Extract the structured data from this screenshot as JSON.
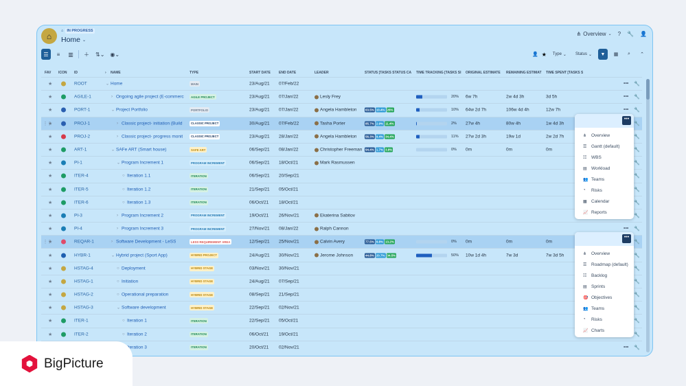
{
  "header": {
    "breadcrumb_status": "IN PROGRESS",
    "title": "Home",
    "view": "Overview"
  },
  "toolbar": {
    "type": "Type",
    "status": "Status"
  },
  "columns": {
    "fav": "FAV",
    "icon": "ICON",
    "id": "ID",
    "name": "NAME",
    "type": "TYPE",
    "start": "START DATE",
    "end": "END DATE",
    "leader": "LEADER",
    "status": "STATUS [TASKS STATUS CA",
    "tt": "TIME TRACKING [TASKS SI",
    "oe": "ORIGINAL ESTIMATE",
    "re": "REMAINING ESTIMAT",
    "ts": "TIME SPENT [TASKS S"
  },
  "rows": [
    {
      "id": "ROOT",
      "name": "Home",
      "type": "MAIN",
      "start": "23/Aug/21",
      "end": "07/Feb/22",
      "leader": "",
      "s": [],
      "tt": null,
      "pct": "",
      "oe": "",
      "re": "",
      "ts": ""
    },
    {
      "id": "AGILE-1",
      "name": "Ongoing agile project (E-commerc",
      "type": "AGILE PROJECT",
      "start": "23/Aug/21",
      "end": "07/Jan/22",
      "leader": "Lesly Frey",
      "s": [],
      "tt": 0.2,
      "pct": "20%",
      "oe": "6w 7h",
      "re": "2w 4d 3h",
      "ts": "3d 5h"
    },
    {
      "id": "PORT-1",
      "name": "Project Portfolio",
      "type": "PORTFOLIO",
      "start": "23/Aug/21",
      "end": "07/Jan/22",
      "leader": "Angela Hambleton",
      "s": [
        "63.5%",
        "10.4%",
        "26%"
      ],
      "tt": 0.1,
      "pct": "10%",
      "oe": "64w 2d 7h",
      "re": "106w 4d 4h",
      "ts": "12w 7h"
    },
    {
      "id": "PROJ-1",
      "name": "Classic project- initiation (Build",
      "type": "CLASSIC PROJECT",
      "start": "30/Aug/21",
      "end": "07/Feb/22",
      "leader": "Tasha Porter",
      "s": [
        "85.7%",
        "2.9%",
        "11.4%"
      ],
      "tt": 0.02,
      "pct": "2%",
      "oe": "27w 4h",
      "re": "80w 4h",
      "ts": "1w 4d 3h"
    },
    {
      "id": "PROJ-2",
      "name": "Classic project- progress monit",
      "type": "CLASSIC PROJECT",
      "start": "23/Aug/21",
      "end": "28/Jan/22",
      "leader": "Angela Hambleton",
      "s": [
        "56.3%",
        "9.4%",
        "34.4%"
      ],
      "tt": 0.11,
      "pct": "11%",
      "oe": "27w 2d 3h",
      "re": "19w 1d",
      "ts": "2w 2d 7h"
    },
    {
      "id": "ART-1",
      "name": "SAFe ART (Smart house)",
      "type": "SAFE ART",
      "start": "06/Sep/21",
      "end": "08/Jan/22",
      "leader": "Christopher Freeman",
      "s": [
        "94.4%",
        "1.7%",
        "3.9%"
      ],
      "tt": 0,
      "pct": "0%",
      "oe": "0m",
      "re": "0m",
      "ts": "0m"
    },
    {
      "id": "PI-1",
      "name": "Program Increment 1",
      "type": "PROGRAM INCREMENT",
      "start": "06/Sep/21",
      "end": "18/Oct/21",
      "leader": "Mark Rasmussen",
      "s": [],
      "tt": null,
      "pct": "",
      "oe": "",
      "re": "",
      "ts": ""
    },
    {
      "id": "ITER-4",
      "name": "Iteration 1.1",
      "type": "ITERATION",
      "start": "06/Sep/21",
      "end": "20/Sep/21",
      "leader": "",
      "s": [],
      "tt": null,
      "pct": "",
      "oe": "",
      "re": "",
      "ts": ""
    },
    {
      "id": "ITER-5",
      "name": "Iteration 1.2",
      "type": "ITERATION",
      "start": "21/Sep/21",
      "end": "05/Oct/21",
      "leader": "",
      "s": [],
      "tt": null,
      "pct": "",
      "oe": "",
      "re": "",
      "ts": ""
    },
    {
      "id": "ITER-6",
      "name": "Iteration 1.3",
      "type": "ITERATION",
      "start": "06/Oct/21",
      "end": "18/Oct/21",
      "leader": "",
      "s": [],
      "tt": null,
      "pct": "",
      "oe": "",
      "re": "",
      "ts": ""
    },
    {
      "id": "PI-3",
      "name": "Program Increment 2",
      "type": "PROGRAM INCREMENT",
      "start": "19/Oct/21",
      "end": "26/Nov/21",
      "leader": "Ekaterina Sabitov",
      "s": [],
      "tt": null,
      "pct": "",
      "oe": "",
      "re": "",
      "ts": ""
    },
    {
      "id": "PI-4",
      "name": "Program Increment 3",
      "type": "PROGRAM INCREMENT",
      "start": "27/Nov/21",
      "end": "08/Jan/22",
      "leader": "Ralph Cannon",
      "s": [],
      "tt": null,
      "pct": "",
      "oe": "",
      "re": "",
      "ts": ""
    },
    {
      "id": "REQAR-1",
      "name": "Software Development - LeSS",
      "type": "LESS REQUIREMENT AREA",
      "start": "12/Sep/21",
      "end": "25/Nov/21",
      "leader": "Calvin Avery",
      "s": [
        "77.5%",
        "8.8%",
        "13.2%"
      ],
      "tt": 0,
      "pct": "0%",
      "oe": "0m",
      "re": "0m",
      "ts": "0m"
    },
    {
      "id": "HYBR-1",
      "name": "Hybrid project (Sport App)",
      "type": "HYBRID PROJECT",
      "start": "24/Aug/21",
      "end": "30/Nov/21",
      "leader": "Jerome Johnson",
      "s": [
        "44.8%",
        "20.7%",
        "34.5%"
      ],
      "tt": 0.5,
      "pct": "50%",
      "oe": "10w 1d 4h",
      "re": "7w 3d",
      "ts": "7w 3d 5h"
    },
    {
      "id": "HSTAG-4",
      "name": "Deployment",
      "type": "HYBRID STAGE",
      "start": "03/Nov/21",
      "end": "30/Nov/21",
      "leader": "",
      "s": [],
      "tt": null,
      "pct": "",
      "oe": "",
      "re": "",
      "ts": ""
    },
    {
      "id": "HSTAG-1",
      "name": "Initiation",
      "type": "HYBRID STAGE",
      "start": "24/Aug/21",
      "end": "07/Sep/21",
      "leader": "",
      "s": [],
      "tt": null,
      "pct": "",
      "oe": "",
      "re": "",
      "ts": ""
    },
    {
      "id": "HSTAG-2",
      "name": "Operational preparation",
      "type": "HYBRID STAGE",
      "start": "08/Sep/21",
      "end": "21/Sep/21",
      "leader": "",
      "s": [],
      "tt": null,
      "pct": "",
      "oe": "",
      "re": "",
      "ts": ""
    },
    {
      "id": "HSTAG-3",
      "name": "Software development",
      "type": "HYBRID STAGE",
      "start": "22/Sep/21",
      "end": "02/Nov/21",
      "leader": "",
      "s": [],
      "tt": null,
      "pct": "",
      "oe": "",
      "re": "",
      "ts": ""
    },
    {
      "id": "ITER-1",
      "name": "Iteration 1",
      "type": "ITERATION",
      "start": "22/Sep/21",
      "end": "05/Oct/21",
      "leader": "",
      "s": [],
      "tt": null,
      "pct": "",
      "oe": "",
      "re": "",
      "ts": ""
    },
    {
      "id": "ITER-2",
      "name": "Iteration 2",
      "type": "ITERATION",
      "start": "06/Oct/21",
      "end": "19/Oct/21",
      "leader": "",
      "s": [],
      "tt": null,
      "pct": "",
      "oe": "",
      "re": "",
      "ts": ""
    },
    {
      "id": "",
      "name": "Iteration 3",
      "type": "ITERATION",
      "start": "20/Oct/21",
      "end": "02/Nov/21",
      "leader": "",
      "s": [],
      "tt": null,
      "pct": "",
      "oe": "",
      "re": "",
      "ts": ""
    }
  ],
  "menu1": [
    "Overview",
    "Gantt (default)",
    "WBS",
    "Workload",
    "Teams",
    "Risks",
    "Calendar",
    "Reports"
  ],
  "menu2": [
    "Overview",
    "Roadmap (default)",
    "Backlog",
    "Sprints",
    "Objectives",
    "Teams",
    "Risks",
    "Charts"
  ],
  "brand": "BigPicture"
}
